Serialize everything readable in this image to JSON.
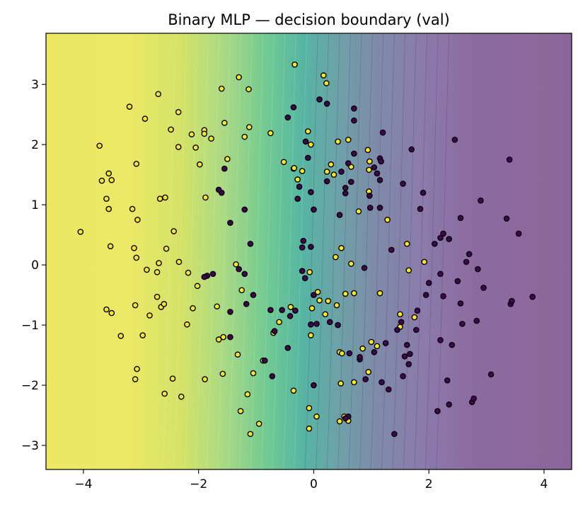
{
  "chart_data": {
    "type": "scatter",
    "title": "Binary MLP — decision boundary (val)",
    "xlabel": "",
    "ylabel": "",
    "xlim": [
      -4.65,
      4.48
    ],
    "ylim": [
      -3.4,
      3.85
    ],
    "xticks": [
      -4,
      -2,
      0,
      2,
      4
    ],
    "yticks": [
      -3,
      -2,
      -1,
      0,
      1,
      2,
      3
    ],
    "x_tick_labels": [
      "−4",
      "−2",
      "0",
      "2",
      "4"
    ],
    "y_tick_labels": [
      "−3",
      "−2",
      "−1",
      "0",
      "1",
      "2",
      "3"
    ],
    "grid": false,
    "legend": "none",
    "background": "decision-boundary contour fill (viridis colormap, alpha 0.6): class 1 probability high (yellow) on left, low (purple) on right",
    "colors": {
      "class_0": "#440154",
      "class_1": "#fde725",
      "marker_edge": "#000000"
    },
    "series": [
      {
        "values": [
          [
            -4.05,
            0.55
          ],
          [
            -3.72,
            1.98
          ],
          [
            -3.6,
            1.1
          ],
          [
            -3.68,
            1.4
          ],
          [
            -3.56,
            1.52
          ],
          [
            -3.51,
            1.41
          ],
          [
            -3.56,
            0.93
          ],
          [
            -3.53,
            0.31
          ],
          [
            -3.6,
            -0.74
          ],
          [
            -3.51,
            -0.8
          ],
          [
            -3.35,
            -1.18
          ],
          [
            -3.2,
            2.63
          ],
          [
            -3.15,
            0.93
          ],
          [
            -3.08,
            1.68
          ],
          [
            -3.06,
            0.75
          ],
          [
            -3.12,
            0.28
          ],
          [
            -3.08,
            0.12
          ],
          [
            -3.1,
            -0.67
          ],
          [
            -3.07,
            -1.73
          ],
          [
            -3.1,
            -1.9
          ],
          [
            -2.97,
            -1.17
          ],
          [
            -2.93,
            2.43
          ],
          [
            -2.9,
            -0.08
          ],
          [
            -2.85,
            -0.84
          ],
          [
            -2.7,
            2.84
          ],
          [
            -2.67,
            1.1
          ],
          [
            -2.69,
            0.03
          ],
          [
            -2.65,
            -0.7
          ],
          [
            -2.72,
            -0.53
          ],
          [
            -2.72,
            -0.12
          ],
          [
            -2.58,
            1.12
          ],
          [
            -2.56,
            0.27
          ],
          [
            -2.6,
            -0.65
          ],
          [
            -2.59,
            -2.14
          ],
          [
            -2.48,
            2.25
          ],
          [
            -2.43,
            0.56
          ],
          [
            -2.45,
            -1.89
          ],
          [
            -2.35,
            2.54
          ],
          [
            -2.35,
            1.96
          ],
          [
            -2.34,
            0.05
          ],
          [
            -2.3,
            -2.19
          ],
          [
            -2.2,
            -0.99
          ],
          [
            -2.18,
            -0.13
          ],
          [
            -2.12,
            2.17
          ],
          [
            -2.1,
            -0.72
          ],
          [
            -2.05,
            1.95
          ],
          [
            -2.02,
            -0.35
          ],
          [
            -1.98,
            1.67
          ],
          [
            -1.9,
            2.24
          ],
          [
            -1.9,
            2.18
          ],
          [
            -1.88,
            1.12
          ],
          [
            -1.89,
            -1.9
          ],
          [
            -1.78,
            2.1
          ],
          [
            -1.68,
            -0.69
          ],
          [
            -1.65,
            -1.24
          ],
          [
            -1.6,
            2.93
          ],
          [
            -1.55,
            2.36
          ],
          [
            -1.57,
            -1.2
          ],
          [
            -1.58,
            -1.81
          ],
          [
            -1.5,
            1.76
          ],
          [
            -1.35,
            0.01
          ],
          [
            -1.32,
            -1.49
          ],
          [
            -1.3,
            3.12
          ],
          [
            -1.27,
            -2.43
          ],
          [
            -1.25,
            -0.42
          ],
          [
            -1.13,
            2.92
          ],
          [
            -1.12,
            2.29
          ],
          [
            -1.2,
            2.13
          ],
          [
            -1.15,
            -2.15
          ],
          [
            -1.05,
            -1.8
          ],
          [
            -0.95,
            -2.64
          ],
          [
            -1.1,
            -2.81
          ],
          [
            -0.88,
            -1.59
          ],
          [
            -0.75,
            2.19
          ],
          [
            -0.7,
            -1.13
          ],
          [
            -0.6,
            -0.95
          ],
          [
            -0.52,
            1.71
          ],
          [
            -0.33,
            3.33
          ],
          [
            -0.35,
            1.6
          ],
          [
            -0.4,
            -0.7
          ],
          [
            -0.35,
            -2.09
          ],
          [
            -0.28,
            1.42
          ],
          [
            -0.2,
            1.56
          ],
          [
            -0.1,
            2.22
          ],
          [
            -0.05,
            2.0
          ],
          [
            -0.07,
            -0.12
          ],
          [
            -0.03,
            -0.72
          ],
          [
            -0.05,
            -1.17
          ],
          [
            -0.08,
            -2.38
          ],
          [
            -0.08,
            -2.72
          ],
          [
            0.05,
            -2.52
          ],
          [
            0.07,
            -0.45
          ],
          [
            0.1,
            -0.59
          ],
          [
            0.17,
            3.15
          ],
          [
            0.22,
            3.02
          ],
          [
            0.23,
            1.55
          ],
          [
            0.3,
            1.67
          ],
          [
            0.2,
            -0.82
          ],
          [
            0.25,
            -0.6
          ],
          [
            0.35,
            1.5
          ],
          [
            0.38,
            0.13
          ],
          [
            0.42,
            2.05
          ],
          [
            0.45,
            -1.45
          ],
          [
            0.49,
            -1.47
          ],
          [
            0.55,
            -0.48
          ],
          [
            0.6,
            2.08
          ],
          [
            0.65,
            1.63
          ],
          [
            0.65,
            0.02
          ],
          [
            0.6,
            -2.59
          ],
          [
            0.53,
            -2.52
          ],
          [
            0.47,
            -1.97
          ],
          [
            0.45,
            -2.6
          ],
          [
            0.48,
            0.28
          ],
          [
            0.4,
            -0.67
          ],
          [
            0.7,
            -0.47
          ],
          [
            0.78,
            0.89
          ],
          [
            0.94,
            1.91
          ],
          [
            0.97,
            1.72
          ],
          [
            0.96,
            1.58
          ],
          [
            0.96,
            1.22
          ],
          [
            1.0,
            -1.28
          ],
          [
            0.95,
            -1.78
          ],
          [
            0.85,
            -1.39
          ],
          [
            0.7,
            -1.95
          ],
          [
            1.1,
            -1.35
          ],
          [
            1.15,
            -0.47
          ],
          [
            1.28,
            0.75
          ],
          [
            1.5,
            -1.03
          ],
          [
            1.62,
            0.35
          ],
          [
            1.65,
            -0.09
          ],
          [
            1.75,
            -0.87
          ],
          [
            1.92,
            0.05
          ],
          [
            1.5,
            -0.82
          ],
          [
            -0.34,
            1.61
          ]
        ],
        "class_label": 1
      },
      {
        "values": [
          [
            -1.55,
            1.6
          ],
          [
            -1.6,
            1.2
          ],
          [
            -1.65,
            1.25
          ],
          [
            -1.45,
            0.7
          ],
          [
            -1.85,
            -0.18
          ],
          [
            -1.75,
            -0.15
          ],
          [
            -1.9,
            -0.2
          ],
          [
            -1.2,
            -0.15
          ],
          [
            -1.2,
            0.92
          ],
          [
            -1.1,
            0.35
          ],
          [
            -1.3,
            -0.07
          ],
          [
            -1.17,
            -0.65
          ],
          [
            -1.45,
            -0.78
          ],
          [
            -1.45,
            -1.2
          ],
          [
            -1.05,
            -0.5
          ],
          [
            -0.85,
            -1.59
          ],
          [
            -0.55,
            -0.75
          ],
          [
            -0.45,
            -1.38
          ],
          [
            -0.2,
            -0.1
          ],
          [
            -0.15,
            -0.22
          ],
          [
            -0.18,
            0.4
          ],
          [
            -0.2,
            0.29
          ],
          [
            -0.25,
            1.3
          ],
          [
            -0.28,
            1.1
          ],
          [
            -0.32,
            -0.76
          ],
          [
            -0.41,
            -0.85
          ],
          [
            -0.45,
            2.45
          ],
          [
            -0.35,
            2.62
          ],
          [
            -0.14,
            2.05
          ],
          [
            -0.1,
            1.78
          ],
          [
            -0.05,
            1.21
          ],
          [
            0.0,
            0.92
          ],
          [
            -0.05,
            0.3
          ],
          [
            0.0,
            -0.5
          ],
          [
            -0.05,
            -0.99
          ],
          [
            0.0,
            -2.0
          ],
          [
            0.1,
            2.75
          ],
          [
            0.23,
            2.68
          ],
          [
            0.23,
            1.39
          ],
          [
            0.45,
            0.83
          ],
          [
            0.48,
            1.55
          ],
          [
            0.55,
            1.28
          ],
          [
            0.6,
            1.69
          ],
          [
            0.65,
            1.38
          ],
          [
            0.7,
            2.6
          ],
          [
            0.7,
            2.4
          ],
          [
            0.7,
            1.85
          ],
          [
            0.55,
            1.19
          ],
          [
            0.28,
            -0.95
          ],
          [
            0.05,
            -0.98
          ],
          [
            0.42,
            -1.0
          ],
          [
            0.6,
            -2.52
          ],
          [
            0.55,
            -2.55
          ],
          [
            0.62,
            -1.47
          ],
          [
            0.8,
            -1.57
          ],
          [
            0.8,
            -1.53
          ],
          [
            0.97,
            1.15
          ],
          [
            1.15,
            1.77
          ],
          [
            1.17,
            1.72
          ],
          [
            1.15,
            1.41
          ],
          [
            1.1,
            1.52
          ],
          [
            1.15,
            0.95
          ],
          [
            1.05,
            -1.45
          ],
          [
            1.25,
            -1.3
          ],
          [
            1.3,
            -2.07
          ],
          [
            1.4,
            -2.81
          ],
          [
            1.35,
            0.25
          ],
          [
            1.55,
            -1.85
          ],
          [
            1.45,
            -1.08
          ],
          [
            1.52,
            -0.95
          ],
          [
            1.58,
            -1.52
          ],
          [
            1.62,
            -1.33
          ],
          [
            1.67,
            -1.48
          ],
          [
            1.55,
            1.35
          ],
          [
            1.65,
            -1.65
          ],
          [
            1.7,
            1.92
          ],
          [
            1.85,
            0.93
          ],
          [
            1.9,
            1.2
          ],
          [
            2.1,
            0.35
          ],
          [
            2.2,
            0.45
          ],
          [
            2.25,
            0.52
          ],
          [
            2.35,
            0.43
          ],
          [
            2.2,
            -0.15
          ],
          [
            2.25,
            -0.52
          ],
          [
            1.8,
            -0.76
          ],
          [
            1.78,
            -1.08
          ],
          [
            2.2,
            -1.25
          ],
          [
            2.15,
            -2.43
          ],
          [
            2.32,
            -1.92
          ],
          [
            2.35,
            -2.32
          ],
          [
            2.4,
            -1.33
          ],
          [
            2.45,
            2.08
          ],
          [
            2.55,
            0.78
          ],
          [
            2.5,
            -0.27
          ],
          [
            2.55,
            -0.64
          ],
          [
            2.58,
            -0.98
          ],
          [
            2.65,
            0.05
          ],
          [
            2.7,
            0.18
          ],
          [
            2.75,
            -2.28
          ],
          [
            2.78,
            -2.22
          ],
          [
            2.83,
            -0.93
          ],
          [
            2.85,
            -0.07
          ],
          [
            2.9,
            1.07
          ],
          [
            2.95,
            -0.38
          ],
          [
            3.08,
            -1.82
          ],
          [
            3.35,
            0.77
          ],
          [
            3.4,
            1.75
          ],
          [
            3.42,
            -0.65
          ],
          [
            3.44,
            -0.6
          ],
          [
            3.56,
            0.52
          ],
          [
            3.8,
            -0.53
          ],
          [
            0.9,
            -1.9
          ],
          [
            1.18,
            -1.95
          ],
          [
            0.98,
            0.95
          ],
          [
            2.0,
            -0.3
          ],
          [
            1.95,
            -0.5
          ],
          [
            0.88,
            -0.05
          ],
          [
            -0.75,
            -0.75
          ],
          [
            1.2,
            2.2
          ],
          [
            1.05,
            1.62
          ],
          [
            -0.68,
            -1.1
          ],
          [
            -0.72,
            -1.85
          ]
        ],
        "class_label": 0
      }
    ]
  }
}
